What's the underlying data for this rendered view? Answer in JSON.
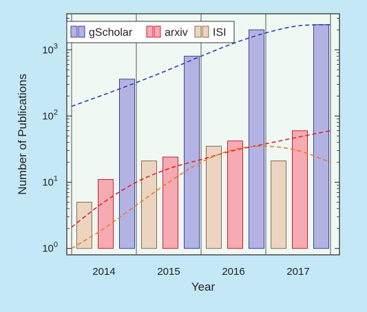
{
  "chart_data": {
    "type": "bar",
    "title": "",
    "xlabel": "Year",
    "ylabel": "Number of Publications",
    "yscale": "log",
    "ylim": [
      0.8,
      3500
    ],
    "categories": [
      "2014",
      "2015",
      "2016",
      "2017"
    ],
    "series": [
      {
        "name": "gScholar",
        "color": "#b3b3e3",
        "edge": "#3a3f9a",
        "values": [
          360,
          800,
          2000,
          2400
        ]
      },
      {
        "name": "arxiv",
        "color": "#f6aab2",
        "edge": "#c81e2c",
        "values": [
          11,
          24,
          42,
          60
        ]
      },
      {
        "name": "ISI",
        "color": "#ebd5c0",
        "edge": "#8a6a48",
        "values": [
          5,
          21,
          35,
          21
        ]
      }
    ],
    "bar_order": [
      [
        "ISI",
        "arxiv",
        "gScholar"
      ],
      [
        "ISI",
        "arxiv",
        "gScholar"
      ],
      [
        "ISI",
        "arxiv",
        "gScholar"
      ],
      [
        "ISI",
        "arxiv",
        "gScholar"
      ]
    ],
    "trend_lines": [
      {
        "series": "gScholar",
        "color": "#2244aa",
        "style": "dashed",
        "x": [
          0,
          0.5,
          1,
          1.5,
          2,
          2.5,
          3,
          3.5,
          4
        ],
        "y": [
          140,
          210,
          320,
          500,
          800,
          1250,
          1800,
          2300,
          2400
        ]
      },
      {
        "series": "arxiv",
        "color": "#dd2222",
        "style": "dashed",
        "x": [
          0,
          0.5,
          1,
          1.5,
          2,
          2.5,
          3,
          3.5,
          4
        ],
        "y": [
          2.1,
          5,
          10,
          16,
          22,
          30,
          38,
          48,
          60
        ]
      },
      {
        "series": "ISI",
        "color": "#ee7722",
        "style": "dashed",
        "x": [
          0,
          0.5,
          1,
          1.5,
          2,
          2.5,
          3,
          3.5,
          4
        ],
        "y": [
          1.0,
          2.0,
          4.5,
          10,
          20,
          31,
          35,
          30,
          20
        ]
      }
    ],
    "y_ticks": [
      {
        "value": 1,
        "mantissa": "10",
        "exp": "0"
      },
      {
        "value": 10,
        "mantissa": "10",
        "exp": "1"
      },
      {
        "value": 100,
        "mantissa": "10",
        "exp": "2"
      },
      {
        "value": 1000,
        "mantissa": "10",
        "exp": "3"
      }
    ],
    "grid": false,
    "legend_position": "top-left"
  }
}
